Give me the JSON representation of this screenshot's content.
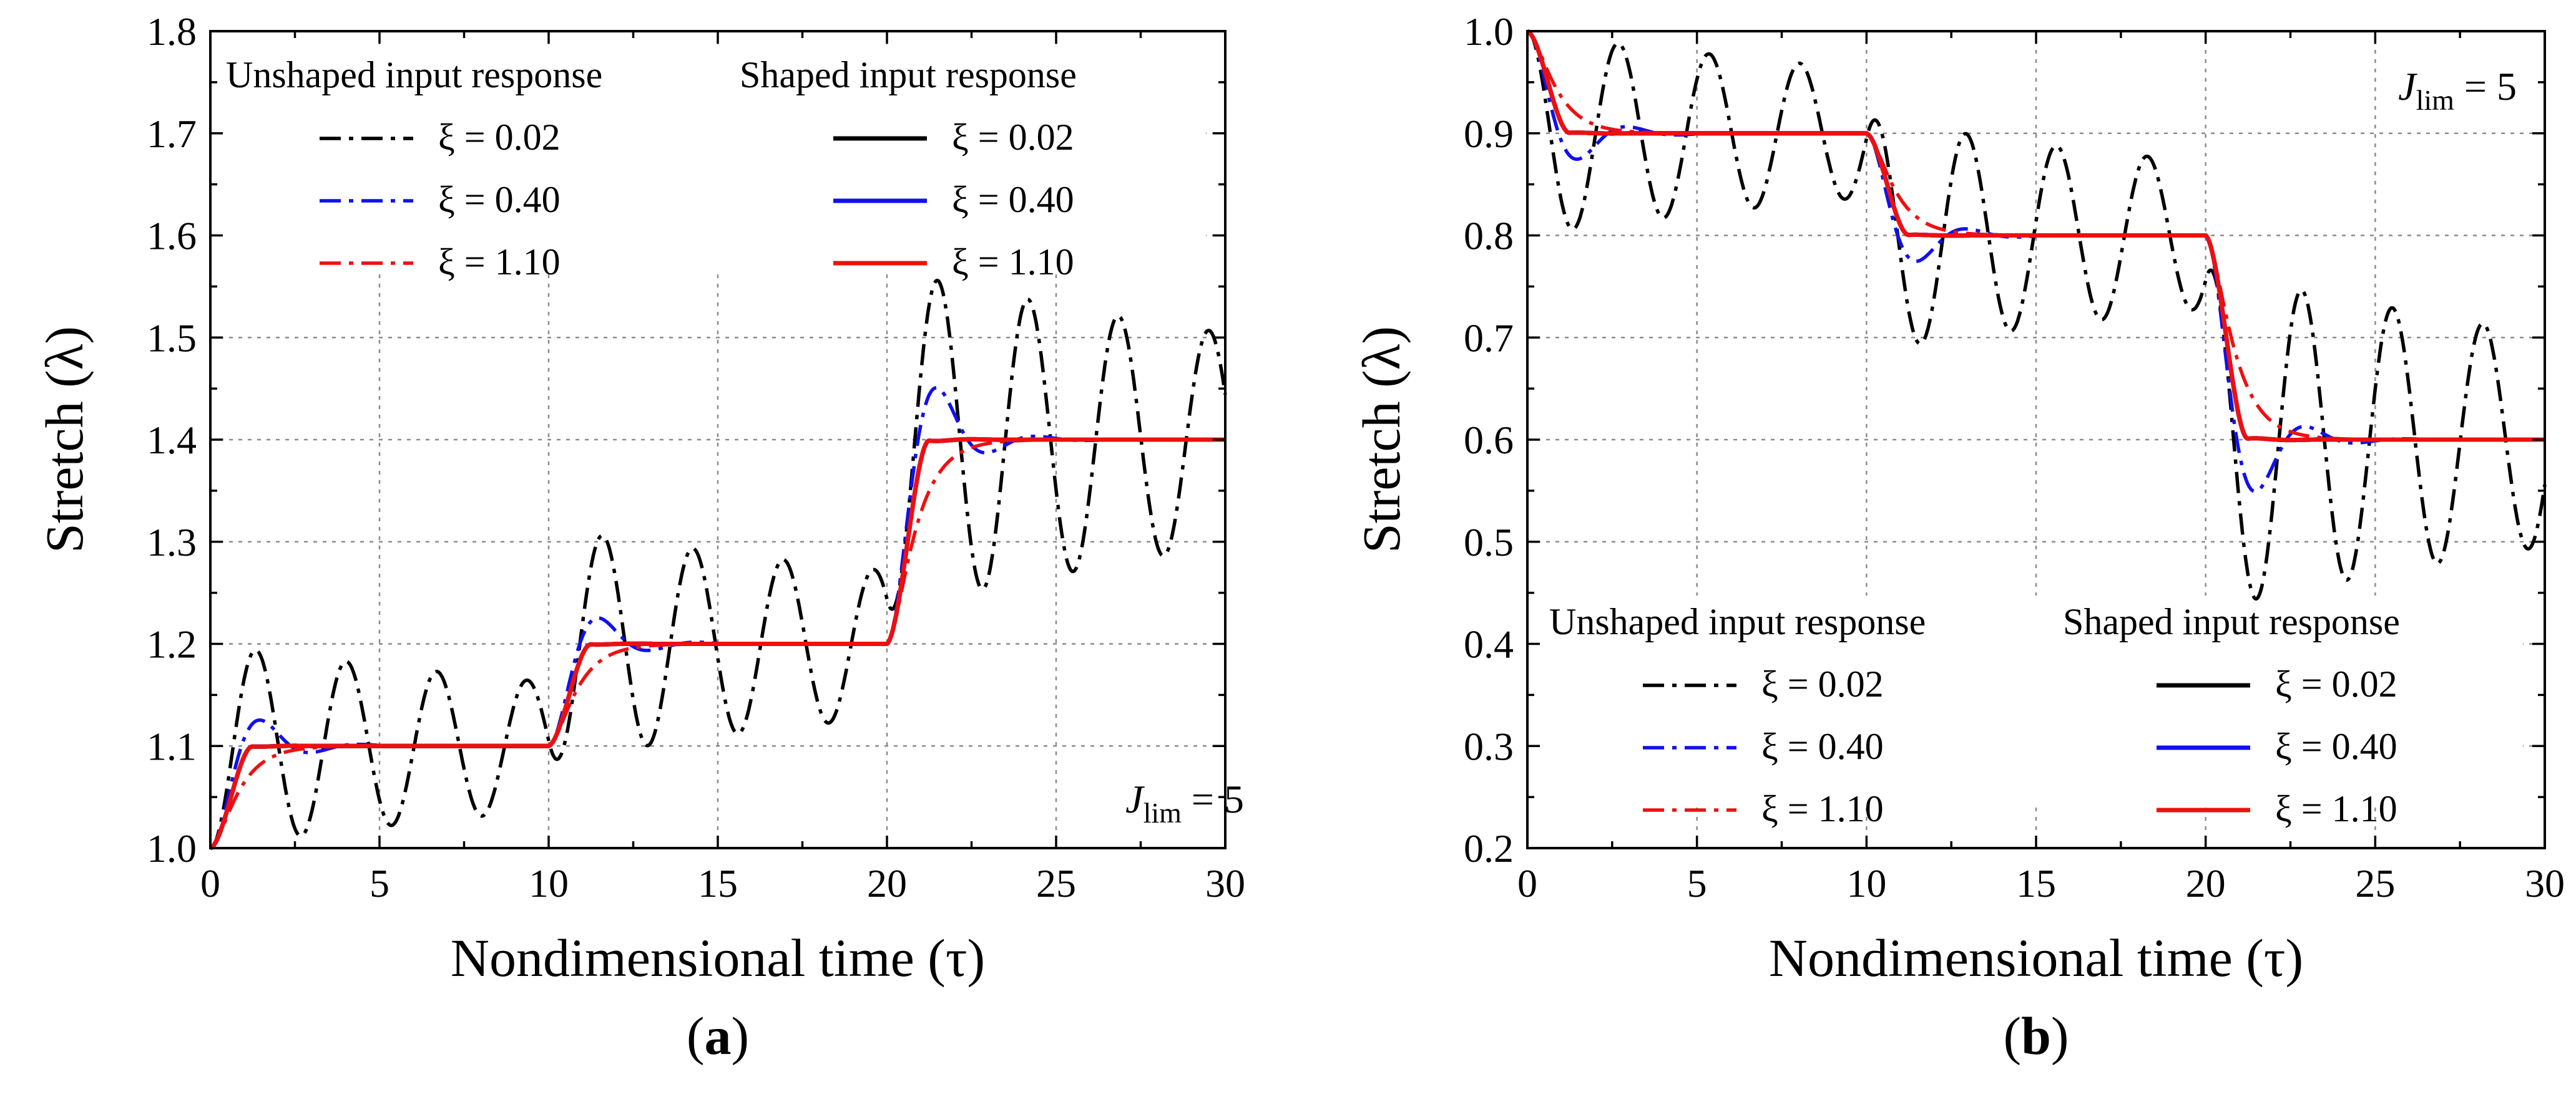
{
  "colors": {
    "k": "#000000",
    "b": "#1010ee",
    "r": "#ee1010"
  },
  "chart_data": [
    {
      "type": "line",
      "panel_label": "(a)",
      "panel_letter": "a",
      "xlabel": "Nondimensional time (τ)",
      "ylabel": "Stretch (λ)",
      "xlim": [
        0,
        30
      ],
      "ylim": [
        1.0,
        1.8
      ],
      "xticks": [
        "0",
        "5",
        "10",
        "15",
        "20",
        "25",
        "30"
      ],
      "yticks": [
        "1.0",
        "1.1",
        "1.2",
        "1.3",
        "1.4",
        "1.5",
        "1.6",
        "1.7",
        "1.8"
      ],
      "grid": true,
      "legend_placement": "top",
      "legend_headers": {
        "unshaped": "Unshaped input response",
        "shaped": "Shaped input response"
      },
      "annotation": {
        "base": "J",
        "sub": "lim",
        "rest": " = 5",
        "placement": "bottom-right"
      },
      "levels": [
        1.1,
        1.2,
        1.4
      ],
      "series": [
        {
          "name": "ξ = 0.02",
          "group": "unshaped",
          "style": "dashdot",
          "color": "k",
          "zeta": 0.02
        },
        {
          "name": "ξ = 0.40",
          "group": "unshaped",
          "style": "dashdot",
          "color": "b",
          "zeta": 0.4
        },
        {
          "name": "ξ = 1.10",
          "group": "unshaped",
          "style": "dashdot",
          "color": "r",
          "zeta": 1.1
        },
        {
          "name": "ξ = 0.02",
          "group": "shaped",
          "style": "solid",
          "color": "k",
          "zeta": 0.02
        },
        {
          "name": "ξ = 0.40",
          "group": "shaped",
          "style": "solid",
          "color": "b",
          "zeta": 0.4
        },
        {
          "name": "ξ = 1.10",
          "group": "shaped",
          "style": "solid",
          "color": "r",
          "zeta": 1.1
        }
      ]
    },
    {
      "type": "line",
      "panel_label": "(b)",
      "panel_letter": "b",
      "xlabel": "Nondimensional time (τ)",
      "ylabel": "Stretch (λ)",
      "xlim": [
        0,
        30
      ],
      "ylim": [
        0.2,
        1.0
      ],
      "xticks": [
        "0",
        "5",
        "10",
        "15",
        "20",
        "25",
        "30"
      ],
      "yticks": [
        "0.2",
        "0.3",
        "0.4",
        "0.5",
        "0.6",
        "0.7",
        "0.8",
        "0.9",
        "1.0"
      ],
      "grid": true,
      "legend_placement": "bottom",
      "legend_headers": {
        "unshaped": "Unshaped input response",
        "shaped": "Shaped input response"
      },
      "annotation": {
        "base": "J",
        "sub": "lim",
        "rest": " = 5",
        "placement": "top-right"
      },
      "levels": [
        0.9,
        0.8,
        0.6
      ],
      "series": [
        {
          "name": "ξ = 0.02",
          "group": "unshaped",
          "style": "dashdot",
          "color": "k",
          "zeta": 0.02
        },
        {
          "name": "ξ = 0.40",
          "group": "unshaped",
          "style": "dashdot",
          "color": "b",
          "zeta": 0.4
        },
        {
          "name": "ξ = 1.10",
          "group": "unshaped",
          "style": "dashdot",
          "color": "r",
          "zeta": 1.1
        },
        {
          "name": "ξ = 0.02",
          "group": "shaped",
          "style": "solid",
          "color": "k",
          "zeta": 0.02
        },
        {
          "name": "ξ = 0.40",
          "group": "shaped",
          "style": "solid",
          "color": "b",
          "zeta": 0.4
        },
        {
          "name": "ξ = 1.10",
          "group": "shaped",
          "style": "solid",
          "color": "r",
          "zeta": 1.1
        }
      ]
    }
  ]
}
